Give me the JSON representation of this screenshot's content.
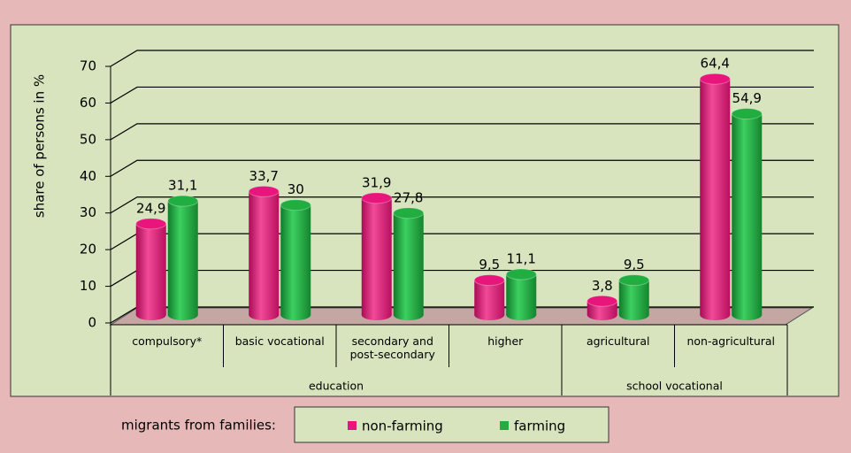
{
  "chart_data": {
    "type": "bar3d",
    "y_label": "share of persons in %",
    "categories": [
      "compulsory*",
      "basic vocational",
      "secondary and post-secondary",
      "higher",
      "agricultural",
      "non-agricultural"
    ],
    "group_labels": [
      "education",
      "school vocational"
    ],
    "legend_title": "migrants from  families:",
    "series": [
      {
        "name": "non-farming",
        "color": "#e8157c",
        "values": [
          24.9,
          33.7,
          31.9,
          9.5,
          3.8,
          64.4
        ],
        "value_labels": [
          "24,9",
          "33,7",
          "31,9",
          "9,5",
          "3,8",
          "64,4"
        ]
      },
      {
        "name": "farming",
        "color": "#1fae3f",
        "values": [
          31.1,
          30,
          27.8,
          11.1,
          9.5,
          54.9
        ],
        "value_labels": [
          "31,1",
          "30",
          "27,8",
          "11,1",
          "9,5",
          "54,9"
        ]
      }
    ],
    "ylim": [
      0,
      70
    ],
    "yticks": [
      0,
      10,
      20,
      30,
      40,
      50,
      60,
      70
    ],
    "grid": true
  }
}
